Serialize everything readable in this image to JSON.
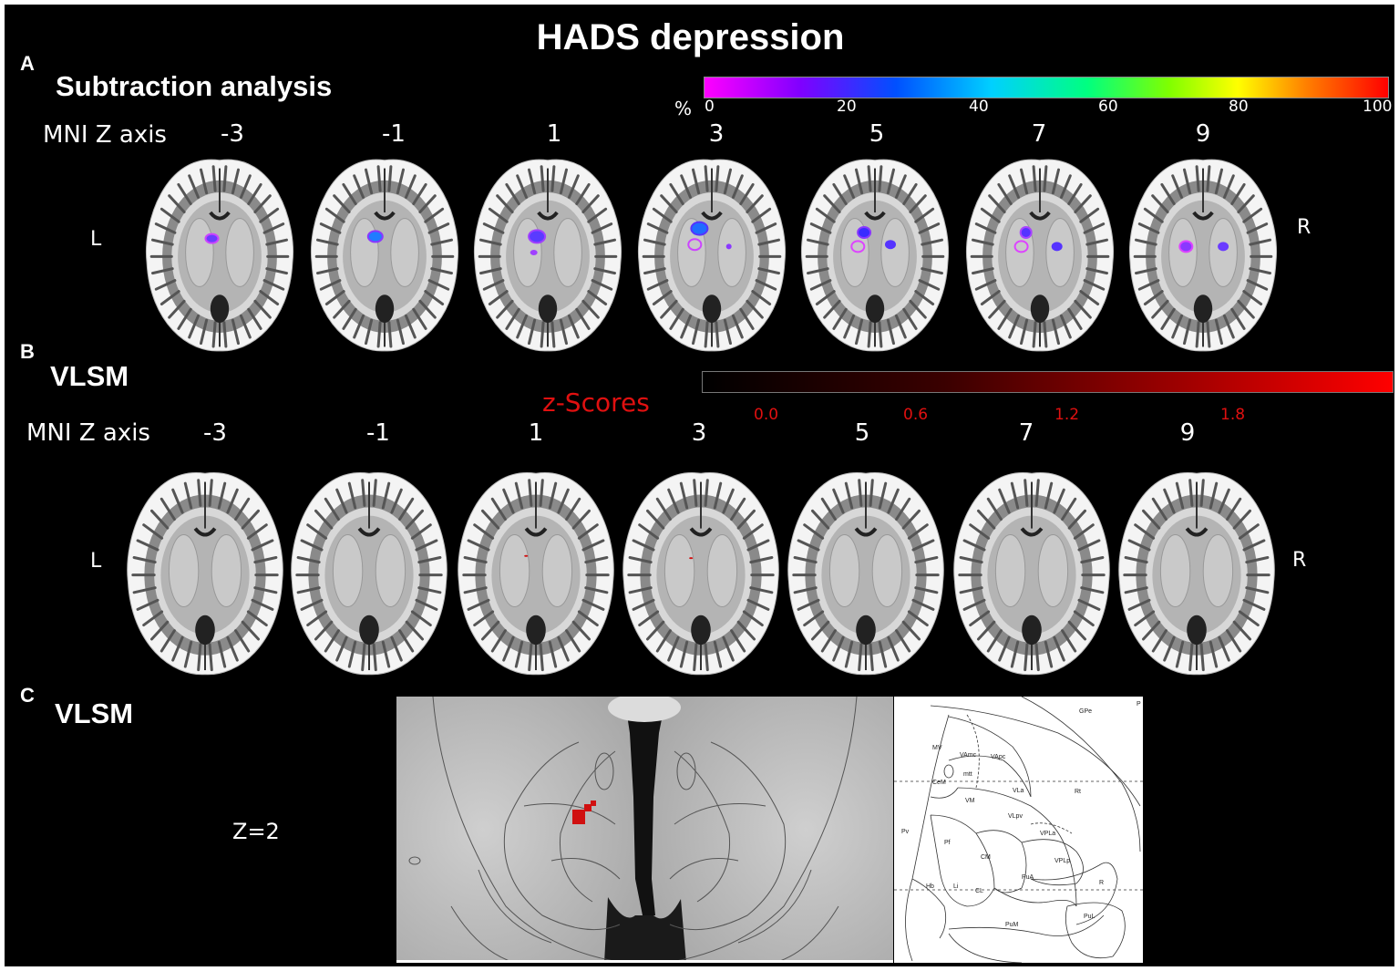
{
  "figure": {
    "title": "HADS depression",
    "panel_a": {
      "letter": "A",
      "heading": "Subtraction analysis",
      "axis_label": "MNI Z axis",
      "slices": [
        "-3",
        "-1",
        "1",
        "3",
        "5",
        "7",
        "9"
      ],
      "left_label": "L",
      "right_label": "R"
    },
    "colorbar_a": {
      "unit": "%",
      "ticks": [
        "0",
        "20",
        "40",
        "60",
        "80",
        "100"
      ]
    },
    "panel_b": {
      "letter": "B",
      "heading": "VLSM",
      "axis_label": "MNI Z axis",
      "slices": [
        "-3",
        "-1",
        "1",
        "3",
        "5",
        "7",
        "9"
      ],
      "left_label": "L",
      "right_label": "R"
    },
    "colorbar_b": {
      "label": "z-Scores",
      "ticks": [
        "0.0",
        "0.6",
        "1.2",
        "1.8"
      ]
    },
    "panel_c": {
      "letter": "C",
      "heading": "VLSM",
      "z_label": "Z=2",
      "atlas_labels": [
        "GPe",
        "MV",
        "VAmc",
        "VApc",
        "mtt",
        "CeM",
        "VM",
        "VLa",
        "VLpv",
        "Rt",
        "VPLa",
        "Pv",
        "Pf",
        "CM",
        "VPLp",
        "PuA",
        "Hb",
        "Li",
        "CL",
        "R",
        "PuM",
        "PuL",
        "P"
      ]
    },
    "colors": {
      "background": "#000000",
      "zscore_red": "#e01010",
      "lesion_red": "#d01010"
    }
  }
}
